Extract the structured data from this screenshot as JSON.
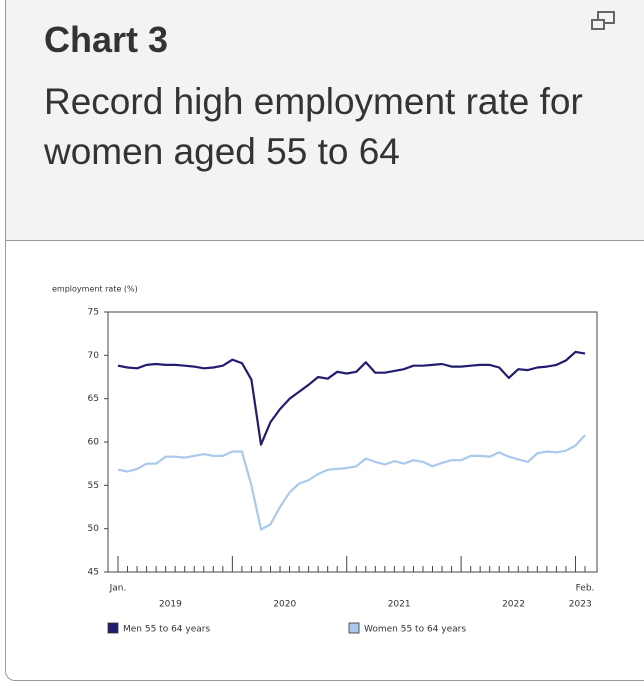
{
  "chart_data": {
    "type": "line",
    "title": "Chart 3",
    "subtitle": "Record high employment rate for women aged 55 to 64",
    "y_label": "employment rate (%)",
    "categories": [
      "Jan.",
      null,
      null,
      null,
      null,
      null,
      null,
      null,
      null,
      null,
      null,
      null,
      null,
      null,
      null,
      null,
      null,
      null,
      null,
      null,
      null,
      null,
      null,
      null,
      null,
      null,
      null,
      null,
      null,
      null,
      null,
      null,
      null,
      null,
      null,
      null,
      null,
      null,
      null,
      null,
      null,
      null,
      null,
      null,
      null,
      null,
      null,
      null,
      null,
      "Feb."
    ],
    "year_labels": [
      "2019",
      "2020",
      "2021",
      "2022",
      "2023"
    ],
    "series": [
      {
        "name": "Men 55 to 64 years",
        "color": "#221d6e",
        "values": [
          68.8,
          68.6,
          68.5,
          68.9,
          69.0,
          68.9,
          68.9,
          68.8,
          68.7,
          68.5,
          68.6,
          68.8,
          69.5,
          69.1,
          67.2,
          59.7,
          62.3,
          63.8,
          65.0,
          65.8,
          66.6,
          67.5,
          67.3,
          68.1,
          67.9,
          68.1,
          69.2,
          68.0,
          68.0,
          68.2,
          68.4,
          68.8,
          68.8,
          68.9,
          69.0,
          68.7,
          68.7,
          68.8,
          68.9,
          68.9,
          68.6,
          67.4,
          68.4,
          68.3,
          68.6,
          68.7,
          68.9,
          69.4,
          70.4,
          70.2
        ]
      },
      {
        "name": "Women 55 to 64 years",
        "color": "#a9c9ee",
        "values": [
          56.8,
          56.6,
          56.9,
          57.5,
          57.5,
          58.3,
          58.3,
          58.2,
          58.4,
          58.6,
          58.4,
          58.4,
          58.9,
          58.9,
          55.0,
          49.9,
          50.5,
          52.5,
          54.2,
          55.2,
          55.6,
          56.3,
          56.8,
          56.9,
          57.0,
          57.2,
          58.1,
          57.7,
          57.4,
          57.8,
          57.5,
          57.9,
          57.7,
          57.2,
          57.6,
          57.9,
          57.9,
          58.4,
          58.4,
          58.3,
          58.8,
          58.3,
          58.0,
          57.7,
          58.7,
          58.9,
          58.8,
          59.0,
          59.6,
          60.8
        ]
      }
    ],
    "ylim": [
      45,
      75
    ],
    "yticks": [
      45,
      50,
      55,
      60,
      65,
      70,
      75
    ],
    "grid": false
  }
}
